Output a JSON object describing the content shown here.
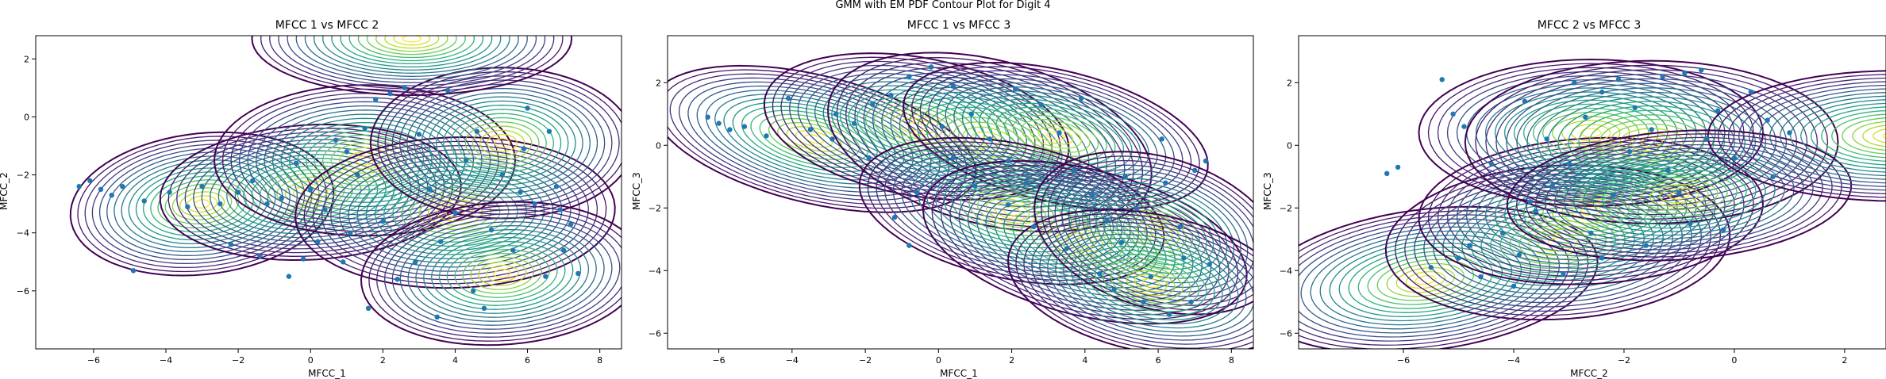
{
  "chart_data": {
    "type": "scatter",
    "title": "GMM with EM PDF Contour Plot for Digit 4",
    "point_color": "#1f77b4",
    "colormap": "viridis",
    "subplots": [
      {
        "title": "MFCC 1 vs MFCC 2",
        "xlabel": "MFCC_1",
        "ylabel": "MFCC_2",
        "xlim": [
          -7.6,
          8.6
        ],
        "ylim": [
          -8.0,
          2.8
        ],
        "xticks": [
          -6,
          -4,
          -2,
          0,
          2,
          4,
          6,
          8
        ],
        "yticks": [
          -6,
          -4,
          -2,
          0,
          2
        ],
        "components": [
          {
            "mean": [
              -3.0,
              -3.0
            ],
            "sx": 1.4,
            "sy": 0.95,
            "rho": 0.15
          },
          {
            "mean": [
              0.0,
              -2.6
            ],
            "sx": 1.6,
            "sy": 0.9,
            "rho": 0.1
          },
          {
            "mean": [
              1.5,
              -1.5
            ],
            "sx": 1.6,
            "sy": 1.0,
            "rho": 0.0
          },
          {
            "mean": [
              4.0,
              -3.3
            ],
            "sx": 1.7,
            "sy": 1.0,
            "rho": 0.05
          },
          {
            "mean": [
              5.3,
              -0.9
            ],
            "sx": 1.4,
            "sy": 1.0,
            "rho": 0.0
          },
          {
            "mean": [
              5.3,
              -5.4
            ],
            "sx": 1.5,
            "sy": 0.95,
            "rho": 0.1
          },
          {
            "mean": [
              2.8,
              2.7
            ],
            "sx": 1.7,
            "sy": 0.75,
            "rho": 0.0
          }
        ],
        "points": [
          [
            -6.4,
            -2.4
          ],
          [
            -6.1,
            -2.2
          ],
          [
            -5.8,
            -2.5
          ],
          [
            -5.5,
            -2.7
          ],
          [
            -4.9,
            -5.3
          ],
          [
            -5.2,
            -2.4
          ],
          [
            -4.6,
            -2.9
          ],
          [
            -3.9,
            -2.6
          ],
          [
            -3.4,
            -3.1
          ],
          [
            -3.0,
            -2.4
          ],
          [
            -2.5,
            -3.0
          ],
          [
            -2.0,
            -2.6
          ],
          [
            -1.6,
            -2.2
          ],
          [
            -1.2,
            -3.0
          ],
          [
            -0.8,
            -2.8
          ],
          [
            -0.4,
            -1.6
          ],
          [
            0.0,
            -2.5
          ],
          [
            0.4,
            -3.2
          ],
          [
            0.7,
            -0.8
          ],
          [
            1.0,
            -1.2
          ],
          [
            1.3,
            -2.0
          ],
          [
            1.5,
            -0.4
          ],
          [
            1.8,
            0.6
          ],
          [
            2.2,
            0.8
          ],
          [
            2.6,
            1.0
          ],
          [
            3.0,
            -0.6
          ],
          [
            3.3,
            -2.5
          ],
          [
            3.6,
            -4.3
          ],
          [
            4.0,
            -3.3
          ],
          [
            4.3,
            -1.5
          ],
          [
            4.6,
            -0.5
          ],
          [
            5.0,
            -3.9
          ],
          [
            5.3,
            -2.0
          ],
          [
            5.6,
            -4.6
          ],
          [
            5.9,
            -1.1
          ],
          [
            6.2,
            -3.0
          ],
          [
            6.5,
            -5.5
          ],
          [
            6.8,
            -2.4
          ],
          [
            7.0,
            -4.6
          ],
          [
            7.2,
            -3.7
          ],
          [
            7.4,
            -5.4
          ],
          [
            6.6,
            -0.5
          ],
          [
            4.8,
            -6.6
          ],
          [
            3.5,
            -6.9
          ],
          [
            2.4,
            -5.6
          ],
          [
            1.6,
            -6.6
          ],
          [
            0.9,
            -5.0
          ],
          [
            0.2,
            -4.3
          ],
          [
            -0.6,
            -5.5
          ],
          [
            -1.4,
            -4.8
          ],
          [
            -2.2,
            -4.4
          ],
          [
            6.0,
            0.3
          ],
          [
            3.8,
            0.9
          ],
          [
            -0.2,
            -4.9
          ],
          [
            1.1,
            -4.0
          ],
          [
            2.9,
            -5.0
          ],
          [
            4.5,
            -6.0
          ],
          [
            6.9,
            -3.2
          ],
          [
            5.8,
            -2.6
          ],
          [
            2.0,
            -3.6
          ]
        ]
      },
      {
        "title": "MFCC 1 vs MFCC 3",
        "xlabel": "MFCC_1",
        "ylabel": "MFCC_3",
        "xlim": [
          -7.4,
          8.6
        ],
        "ylim": [
          -6.5,
          3.5
        ],
        "xticks": [
          -6,
          -4,
          -2,
          0,
          2,
          4,
          6,
          8
        ],
        "yticks": [
          -6,
          -4,
          -2,
          0,
          2
        ],
        "components": [
          {
            "mean": [
              -3.4,
              0.2
            ],
            "sx": 1.7,
            "sy": 0.9,
            "rho": -0.45
          },
          {
            "mean": [
              -0.6,
              0.6
            ],
            "sx": 1.6,
            "sy": 0.9,
            "rho": -0.3
          },
          {
            "mean": [
              1.4,
              0.1
            ],
            "sx": 1.7,
            "sy": 1.1,
            "rho": -0.35
          },
          {
            "mean": [
              3.2,
              0.3
            ],
            "sx": 1.6,
            "sy": 0.9,
            "rho": -0.4
          },
          {
            "mean": [
              2.0,
              -2.1
            ],
            "sx": 1.6,
            "sy": 0.9,
            "rho": -0.35
          },
          {
            "mean": [
              4.0,
              -3.1
            ],
            "sx": 1.7,
            "sy": 1.0,
            "rho": -0.4
          },
          {
            "mean": [
              6.0,
              -2.8
            ],
            "sx": 1.3,
            "sy": 1.0,
            "rho": -0.3
          },
          {
            "mean": [
              5.8,
              -4.4
            ],
            "sx": 1.5,
            "sy": 0.9,
            "rho": -0.3
          }
        ],
        "points": [
          [
            -6.3,
            0.9
          ],
          [
            -6.0,
            0.7
          ],
          [
            -5.7,
            0.5
          ],
          [
            -5.3,
            0.6
          ],
          [
            -4.7,
            0.3
          ],
          [
            -4.1,
            1.5
          ],
          [
            -3.5,
            0.5
          ],
          [
            -2.9,
            0.2
          ],
          [
            -2.3,
            0.7
          ],
          [
            -1.8,
            1.3
          ],
          [
            -1.3,
            1.6
          ],
          [
            -0.8,
            2.2
          ],
          [
            -0.2,
            2.5
          ],
          [
            0.4,
            1.9
          ],
          [
            0.9,
            1.0
          ],
          [
            1.4,
            0.2
          ],
          [
            1.9,
            -0.5
          ],
          [
            2.4,
            -1.2
          ],
          [
            2.8,
            1.3
          ],
          [
            3.3,
            0.4
          ],
          [
            3.7,
            -0.8
          ],
          [
            4.2,
            -1.6
          ],
          [
            4.6,
            -2.4
          ],
          [
            5.0,
            -3.1
          ],
          [
            5.4,
            -2.0
          ],
          [
            5.8,
            -4.2
          ],
          [
            6.2,
            -1.2
          ],
          [
            6.6,
            -2.6
          ],
          [
            7.0,
            -0.8
          ],
          [
            7.3,
            -0.5
          ],
          [
            7.4,
            -3.8
          ],
          [
            6.9,
            -5.0
          ],
          [
            6.3,
            -5.4
          ],
          [
            5.6,
            -5.0
          ],
          [
            4.4,
            -4.1
          ],
          [
            3.5,
            -3.3
          ],
          [
            2.6,
            -2.6
          ],
          [
            1.9,
            -1.9
          ],
          [
            1.0,
            -1.3
          ],
          [
            0.4,
            -0.4
          ],
          [
            -0.6,
            -1.5
          ],
          [
            -1.2,
            -2.3
          ],
          [
            -0.8,
            -3.2
          ],
          [
            -1.9,
            -0.4
          ],
          [
            0.1,
            0.6
          ],
          [
            -2.8,
            1.0
          ],
          [
            3.9,
            1.5
          ],
          [
            2.1,
            1.8
          ],
          [
            6.1,
            0.2
          ],
          [
            5.1,
            -1.0
          ],
          [
            6.7,
            -3.6
          ],
          [
            4.8,
            -4.6
          ]
        ]
      },
      {
        "title": "MFCC 2 vs MFCC 3",
        "xlabel": "MFCC_2",
        "ylabel": "MFCC_3",
        "xlim": [
          -7.9,
          2.75
        ],
        "ylim": [
          -6.5,
          3.5
        ],
        "xticks": [
          -6,
          -4,
          -2,
          0,
          2
        ],
        "yticks": [
          -6,
          -4,
          -2,
          0,
          2
        ],
        "components": [
          {
            "mean": [
              -5.6,
              -4.3
            ],
            "sx": 1.2,
            "sy": 0.9,
            "rho": 0.25
          },
          {
            "mean": [
              -3.2,
              -3.1
            ],
            "sx": 1.2,
            "sy": 0.95,
            "rho": 0.1
          },
          {
            "mean": [
              -2.6,
              -2.1
            ],
            "sx": 1.2,
            "sy": 0.9,
            "rho": 0.1
          },
          {
            "mean": [
              -2.6,
              0.4
            ],
            "sx": 1.2,
            "sy": 0.9,
            "rho": 0.0
          },
          {
            "mean": [
              -1.5,
              0.1
            ],
            "sx": 1.3,
            "sy": 1.0,
            "rho": 0.0
          },
          {
            "mean": [
              -1.0,
              -1.6
            ],
            "sx": 1.2,
            "sy": 0.8,
            "rho": 0.15
          },
          {
            "mean": [
              2.9,
              0.3
            ],
            "sx": 1.3,
            "sy": 0.8,
            "rho": 0.0
          }
        ],
        "points": [
          [
            -6.3,
            -0.9
          ],
          [
            -6.1,
            -0.7
          ],
          [
            -5.3,
            2.1
          ],
          [
            -5.1,
            1.0
          ],
          [
            -4.9,
            0.6
          ],
          [
            -5.5,
            -3.9
          ],
          [
            -5.0,
            -3.6
          ],
          [
            -4.6,
            -4.2
          ],
          [
            -4.2,
            -2.8
          ],
          [
            -3.9,
            -3.5
          ],
          [
            -3.6,
            -2.1
          ],
          [
            -3.3,
            -1.3
          ],
          [
            -3.0,
            -0.6
          ],
          [
            -2.7,
            0.9
          ],
          [
            -2.4,
            1.7
          ],
          [
            -2.1,
            2.1
          ],
          [
            -1.8,
            1.2
          ],
          [
            -1.5,
            0.5
          ],
          [
            -1.2,
            -0.8
          ],
          [
            -0.9,
            2.3
          ],
          [
            -0.6,
            2.4
          ],
          [
            -0.3,
            1.1
          ],
          [
            0.0,
            -0.4
          ],
          [
            0.3,
            1.7
          ],
          [
            0.6,
            0.8
          ],
          [
            1.0,
            0.4
          ],
          [
            -0.8,
            -2.5
          ],
          [
            -1.6,
            -3.2
          ],
          [
            -2.4,
            -3.6
          ],
          [
            -3.1,
            -4.1
          ],
          [
            -4.0,
            -4.5
          ],
          [
            -4.8,
            -3.2
          ],
          [
            -3.4,
            0.2
          ],
          [
            -2.2,
            -1.6
          ],
          [
            -1.0,
            -1.5
          ],
          [
            -0.2,
            -2.7
          ],
          [
            -4.4,
            -0.6
          ],
          [
            -3.8,
            1.4
          ],
          [
            -2.9,
            2.0
          ],
          [
            -1.3,
            2.2
          ],
          [
            -0.5,
            0.2
          ],
          [
            0.7,
            -1.0
          ],
          [
            -3.7,
            -1.8
          ],
          [
            -2.6,
            -2.8
          ],
          [
            -1.9,
            -0.2
          ]
        ]
      }
    ]
  }
}
